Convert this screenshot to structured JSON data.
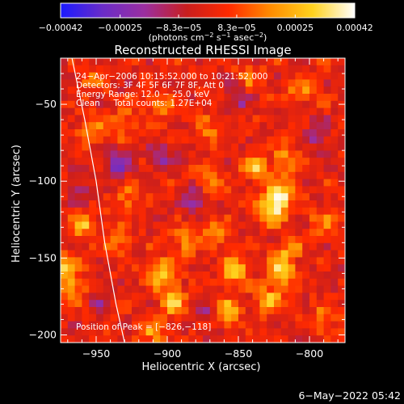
{
  "chart_data": {
    "type": "heatmap",
    "title": "Reconstructed RHESSI Image",
    "xlabel": "Heliocentric X (arcsec)",
    "ylabel": "Heliocentric Y (arcsec)",
    "xlim": [
      -975,
      -775
    ],
    "ylim": [
      -205,
      -20
    ],
    "x_ticks": [
      -950,
      -900,
      -850,
      -800
    ],
    "x_tick_labels": [
      "−950",
      "−900",
      "−850",
      "−800"
    ],
    "y_ticks": [
      -50,
      -100,
      -150,
      -200
    ],
    "y_tick_labels": [
      "−50",
      "−100",
      "−150",
      "−200"
    ],
    "colorbar": {
      "min": -0.00042,
      "max": 0.00042,
      "ticks": [
        -0.00042,
        -0.00025,
        -8.3e-05,
        8.3e-05,
        0.00025,
        0.00042
      ],
      "tick_labels": [
        "−0.00042",
        "−0.00025",
        "−8.3e−05",
        "8.3e−05",
        "0.00025",
        "0.00042"
      ],
      "units_prefix": "(photons cm",
      "units_exp1": "−2",
      "units_mid": " s",
      "units_exp2": "−1",
      "units_end": " asec",
      "units_exp3": "−2",
      "units_close": ")",
      "colormap": [
        "#1a1aff",
        "#6a2cc8",
        "#9b2fa0",
        "#c81e1e",
        "#ff2a00",
        "#ff8c00",
        "#ffd21e",
        "#ffffff"
      ]
    },
    "annotations": {
      "line1": "24−Apr−2006 10:15:52.000 to 10:21:52.000",
      "line2": "Detectors: 3F 4F 5F 6F 7F 8F, Att 0",
      "line3": "Energy Range: 12.0 − 25.0 keV",
      "line4": "Clean     Total counts: 1.27E+04",
      "peak": "Position of Peak = [−826,−118]"
    },
    "peak_position": [
      -826,
      -118
    ],
    "limb_curve": [
      [
        -967,
        -20
      ],
      [
        -958,
        -60
      ],
      [
        -950,
        -100
      ],
      [
        -944,
        -140
      ],
      [
        -936,
        -180
      ],
      [
        -930,
        -205
      ]
    ],
    "blobs": [
      {
        "x": -826,
        "y": -118,
        "v": 1.0
      },
      {
        "x": -820,
        "y": -108,
        "v": 0.85
      },
      {
        "x": -838,
        "y": -92,
        "v": 0.75
      },
      {
        "x": -817,
        "y": -85,
        "v": 0.6
      },
      {
        "x": -820,
        "y": -160,
        "v": 0.85
      },
      {
        "x": -828,
        "y": -178,
        "v": 0.7
      },
      {
        "x": -815,
        "y": -145,
        "v": 0.55
      },
      {
        "x": -853,
        "y": -158,
        "v": 0.85
      },
      {
        "x": -858,
        "y": -185,
        "v": 0.7
      },
      {
        "x": -868,
        "y": -133,
        "v": 0.55
      },
      {
        "x": -903,
        "y": -160,
        "v": 0.85
      },
      {
        "x": -896,
        "y": -178,
        "v": 0.85
      },
      {
        "x": -910,
        "y": -198,
        "v": 0.55
      },
      {
        "x": -888,
        "y": -140,
        "v": 0.45
      },
      {
        "x": -972,
        "y": -158,
        "v": 0.75
      },
      {
        "x": -965,
        "y": -172,
        "v": 0.5
      },
      {
        "x": -958,
        "y": -128,
        "v": 0.65
      },
      {
        "x": -952,
        "y": -65,
        "v": 0.55
      },
      {
        "x": -930,
        "y": -62,
        "v": 0.45
      },
      {
        "x": -905,
        "y": -50,
        "v": 0.45
      },
      {
        "x": -935,
        "y": -138,
        "v": 0.6
      },
      {
        "x": -928,
        "y": -112,
        "v": 0.45
      },
      {
        "x": -870,
        "y": -68,
        "v": 0.45
      },
      {
        "x": -872,
        "y": -100,
        "v": 0.5
      },
      {
        "x": -805,
        "y": -40,
        "v": 0.5
      },
      {
        "x": -790,
        "y": -125,
        "v": 0.45
      },
      {
        "x": -790,
        "y": -190,
        "v": 0.45
      },
      {
        "x": -842,
        "y": -32,
        "v": 0.4
      },
      {
        "x": -955,
        "y": -35,
        "v": 0.35
      },
      {
        "x": -935,
        "y": -90,
        "v": -0.6
      },
      {
        "x": -902,
        "y": -85,
        "v": -0.45
      },
      {
        "x": -880,
        "y": -112,
        "v": -0.55
      },
      {
        "x": -850,
        "y": -45,
        "v": -0.45
      },
      {
        "x": -795,
        "y": -70,
        "v": -0.5
      },
      {
        "x": -962,
        "y": -105,
        "v": -0.4
      },
      {
        "x": -948,
        "y": -178,
        "v": -0.35
      },
      {
        "x": -875,
        "y": -185,
        "v": -0.4
      }
    ]
  },
  "footer": {
    "date": "6−May−2022 05:42"
  },
  "colors": {
    "background": "#000000",
    "foreground": "#ffffff"
  }
}
